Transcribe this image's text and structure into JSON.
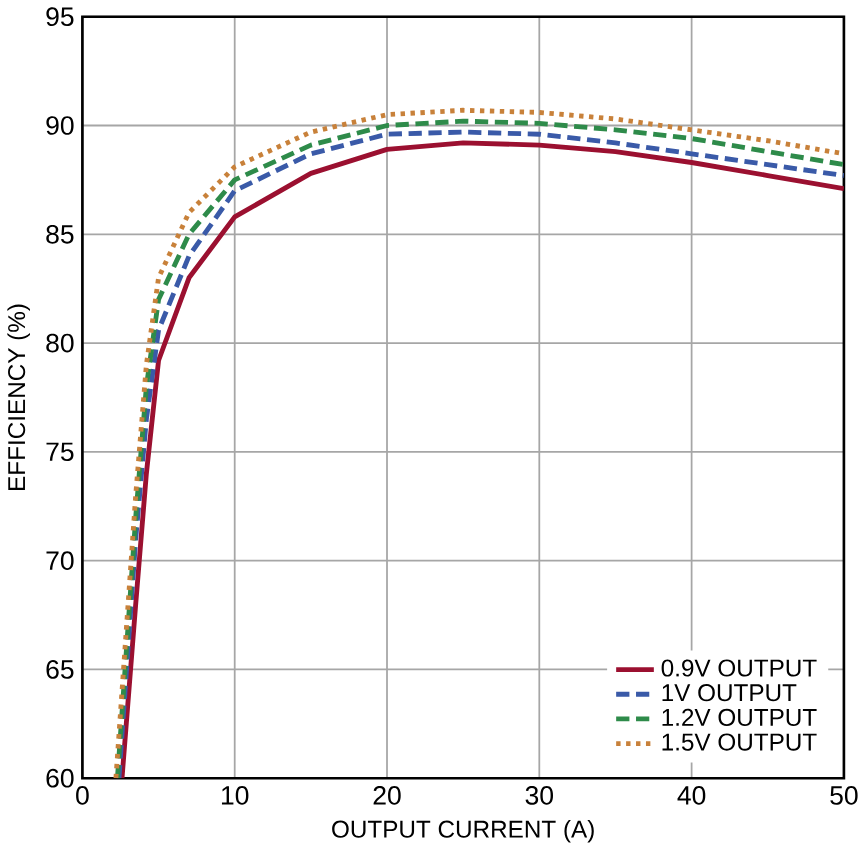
{
  "chart_data": {
    "type": "line",
    "xlabel": "OUTPUT CURRENT (A)",
    "ylabel": "EFFICIENCY (%)",
    "xlim": [
      0,
      50
    ],
    "ylim": [
      60,
      95
    ],
    "xticks": [
      0,
      10,
      20,
      30,
      40,
      50
    ],
    "yticks": [
      60,
      65,
      70,
      75,
      80,
      85,
      90,
      95
    ],
    "grid": true,
    "legend": "bottom right",
    "x": [
      2.6,
      3.5,
      4.2,
      5,
      7,
      10,
      15,
      20,
      25,
      30,
      35,
      40,
      45,
      50
    ],
    "series": [
      {
        "name": "0.9V OUTPUT",
        "color": "#9b1030",
        "line_style": "solid",
        "values": [
          60,
          68,
          74,
          79.2,
          83,
          85.8,
          87.8,
          88.9,
          89.2,
          89.1,
          88.8,
          88.3,
          87.7,
          87.1
        ]
      },
      {
        "name": "1V OUTPUT",
        "color": "#3a5aa8",
        "line_style": "dashed",
        "x": [
          2.4,
          3.5,
          4.2,
          5,
          7,
          10,
          15,
          20,
          25,
          30,
          35,
          40,
          45,
          50
        ],
        "values": [
          60,
          71,
          76.5,
          80.6,
          84,
          87,
          88.7,
          89.6,
          89.7,
          89.6,
          89.2,
          88.7,
          88.2,
          87.7
        ]
      },
      {
        "name": "1.2V OUTPUT",
        "color": "#2e8b4a",
        "line_style": "dashed",
        "x": [
          2.3,
          3.5,
          4.2,
          5,
          7,
          10,
          15,
          20,
          25,
          30,
          35,
          40,
          45,
          50
        ],
        "values": [
          60,
          72,
          78,
          82,
          85,
          87.5,
          89.1,
          90.0,
          90.2,
          90.1,
          89.8,
          89.4,
          88.8,
          88.2
        ]
      },
      {
        "name": "1.5V OUTPUT",
        "color": "#c8813a",
        "line_style": "dotted",
        "x": [
          2.2,
          3.5,
          4.2,
          5,
          7,
          10,
          15,
          20,
          25,
          30,
          35,
          40,
          45,
          50
        ],
        "values": [
          60,
          73,
          79,
          83,
          86,
          88.1,
          89.7,
          90.5,
          90.7,
          90.6,
          90.3,
          89.8,
          89.3,
          88.7
        ]
      }
    ]
  }
}
